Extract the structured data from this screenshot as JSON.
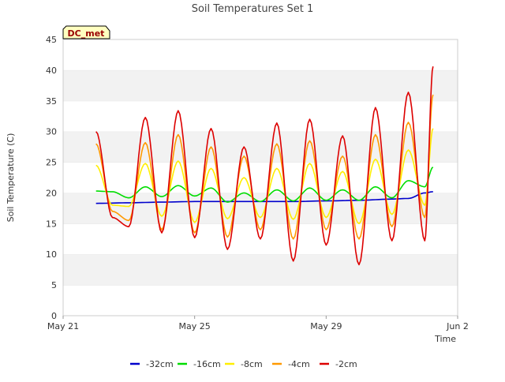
{
  "chart_data": {
    "type": "line",
    "title": "Soil Temperatures Set 1",
    "xlabel": "Time",
    "ylabel": "Soil Temperature (C)",
    "badge": "DC_met",
    "x_ticks": [
      "May 21",
      "May 25",
      "May 29",
      "Jun 2"
    ],
    "y_ticks": [
      0,
      5,
      10,
      15,
      20,
      25,
      30,
      35,
      40,
      45
    ],
    "xlim": [
      "2025-05-21",
      "2025-06-02"
    ],
    "ylim": [
      0,
      45
    ],
    "grid": "horizontal bands",
    "legend_position": "bottom",
    "series": [
      {
        "name": "-32cm",
        "color": "#0000cc",
        "x": [
          "2025-05-22 00:00",
          "2025-05-23 00:00",
          "2025-05-24 00:00",
          "2025-05-25 00:00",
          "2025-05-26 00:00",
          "2025-05-27 00:00",
          "2025-05-28 00:00",
          "2025-05-29 00:00",
          "2025-05-30 00:00",
          "2025-05-31 00:00",
          "2025-05-31 12:00",
          "2025-06-01 00:00",
          "2025-06-01 06:00"
        ],
        "y": [
          18.3,
          18.4,
          18.5,
          18.6,
          18.6,
          18.6,
          18.6,
          18.7,
          18.8,
          19.0,
          19.1,
          20.0,
          20.2
        ]
      },
      {
        "name": "-16cm",
        "color": "#00dd00",
        "x": [
          "2025-05-22 00:00",
          "2025-05-22 12:00",
          "2025-05-23 00:00",
          "2025-05-23 12:00",
          "2025-05-24 00:00",
          "2025-05-24 12:00",
          "2025-05-25 00:00",
          "2025-05-25 12:00",
          "2025-05-26 00:00",
          "2025-05-26 12:00",
          "2025-05-27 00:00",
          "2025-05-27 12:00",
          "2025-05-28 00:00",
          "2025-05-28 12:00",
          "2025-05-29 00:00",
          "2025-05-29 12:00",
          "2025-05-30 00:00",
          "2025-05-30 12:00",
          "2025-05-31 00:00",
          "2025-05-31 12:00",
          "2025-06-01 00:00",
          "2025-06-01 06:00"
        ],
        "y": [
          20.3,
          20.2,
          19.2,
          21.0,
          19.4,
          21.2,
          19.5,
          20.8,
          18.5,
          20.0,
          18.6,
          20.5,
          18.7,
          20.8,
          18.8,
          20.5,
          18.8,
          21.0,
          19.2,
          22.0,
          21.0,
          24.2
        ]
      },
      {
        "name": "-8cm",
        "color": "#ffee00",
        "x": [
          "2025-05-22 00:00",
          "2025-05-22 12:00",
          "2025-05-23 00:00",
          "2025-05-23 12:00",
          "2025-05-24 00:00",
          "2025-05-24 12:00",
          "2025-05-25 00:00",
          "2025-05-25 12:00",
          "2025-05-26 00:00",
          "2025-05-26 12:00",
          "2025-05-27 00:00",
          "2025-05-27 12:00",
          "2025-05-28 00:00",
          "2025-05-28 12:00",
          "2025-05-29 00:00",
          "2025-05-29 12:00",
          "2025-05-30 00:00",
          "2025-05-30 12:00",
          "2025-05-31 00:00",
          "2025-05-31 12:00",
          "2025-06-01 00:00",
          "2025-06-01 06:00"
        ],
        "y": [
          24.5,
          18.0,
          17.8,
          24.8,
          16.2,
          25.2,
          15.2,
          24.0,
          15.8,
          22.5,
          16.0,
          24.0,
          15.7,
          24.8,
          16.0,
          23.5,
          15.0,
          25.5,
          16.5,
          27.0,
          18.0,
          30.5
        ]
      },
      {
        "name": "-4cm",
        "color": "#ff9900",
        "x": [
          "2025-05-22 00:00",
          "2025-05-22 12:00",
          "2025-05-23 00:00",
          "2025-05-23 12:00",
          "2025-05-24 00:00",
          "2025-05-24 12:00",
          "2025-05-25 00:00",
          "2025-05-25 12:00",
          "2025-05-26 00:00",
          "2025-05-26 12:00",
          "2025-05-27 00:00",
          "2025-05-27 12:00",
          "2025-05-28 00:00",
          "2025-05-28 12:00",
          "2025-05-29 00:00",
          "2025-05-29 12:00",
          "2025-05-30 00:00",
          "2025-05-30 12:00",
          "2025-05-31 00:00",
          "2025-05-31 12:00",
          "2025-06-01 00:00",
          "2025-06-01 06:00"
        ],
        "y": [
          28.0,
          17.0,
          15.5,
          28.2,
          14.0,
          29.5,
          13.5,
          27.5,
          12.8,
          26.0,
          14.0,
          28.0,
          12.5,
          28.5,
          14.0,
          26.0,
          12.5,
          29.5,
          14.5,
          31.5,
          16.0,
          36.0
        ]
      },
      {
        "name": "-2cm",
        "color": "#dd0000",
        "x": [
          "2025-05-22 00:00",
          "2025-05-22 12:00",
          "2025-05-23 00:00",
          "2025-05-23 12:00",
          "2025-05-24 00:00",
          "2025-05-24 12:00",
          "2025-05-25 00:00",
          "2025-05-25 12:00",
          "2025-05-26 00:00",
          "2025-05-26 12:00",
          "2025-05-27 00:00",
          "2025-05-27 12:00",
          "2025-05-28 00:00",
          "2025-05-28 12:00",
          "2025-05-29 00:00",
          "2025-05-29 12:00",
          "2025-05-30 00:00",
          "2025-05-30 12:00",
          "2025-05-31 00:00",
          "2025-05-31 12:00",
          "2025-06-01 00:00",
          "2025-06-01 06:00"
        ],
        "y": [
          30.0,
          16.0,
          14.5,
          32.3,
          13.5,
          33.4,
          12.7,
          30.5,
          10.8,
          27.5,
          12.5,
          31.4,
          8.9,
          32.0,
          11.5,
          29.3,
          8.3,
          33.9,
          12.2,
          36.4,
          12.2,
          40.6
        ]
      }
    ]
  }
}
